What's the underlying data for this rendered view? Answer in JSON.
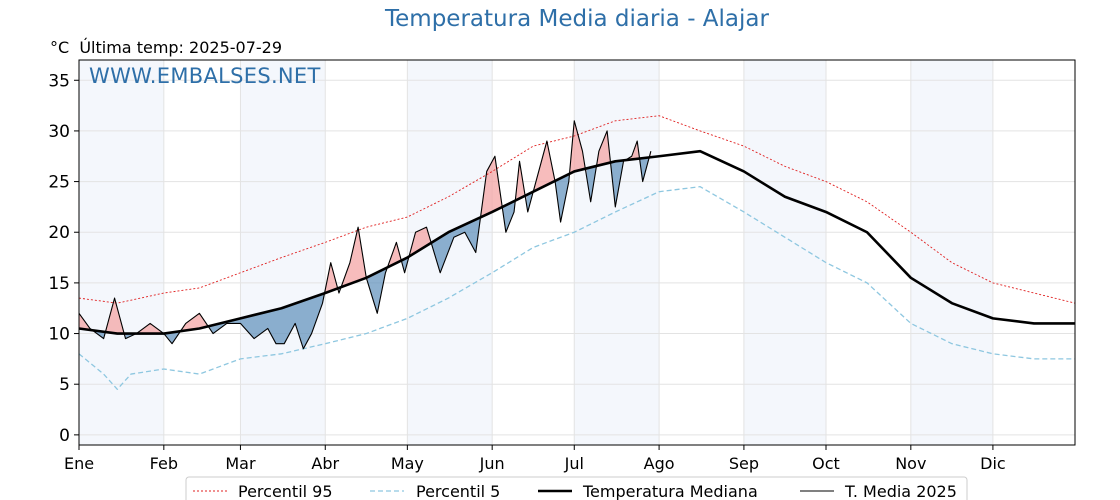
{
  "title": "Temperatura Media diaria - Alajar",
  "unit_label": "°C",
  "last_temp_label": "Última temp: 2025-07-29",
  "watermark": "WWW.EMBALSES.NET",
  "colors": {
    "title": "#2e6fa8",
    "p95": "#e02020",
    "p5": "#8ec7e0",
    "median": "#000000",
    "current": "#000000",
    "above_fill": "#f4a6a6",
    "below_fill": "#5d8fba",
    "month_band": "#dfe9f5"
  },
  "chart_data": {
    "type": "line",
    "ylabel": "°C",
    "ylim": [
      -1,
      37
    ],
    "yticks": [
      0,
      5,
      10,
      15,
      20,
      25,
      30,
      35
    ],
    "x_unit": "day of year",
    "xlim": [
      1,
      365
    ],
    "month_ticks": [
      {
        "label": "Ene",
        "day": 1
      },
      {
        "label": "Feb",
        "day": 32
      },
      {
        "label": "Mar",
        "day": 60
      },
      {
        "label": "Abr",
        "day": 91
      },
      {
        "label": "May",
        "day": 121
      },
      {
        "label": "Jun",
        "day": 152
      },
      {
        "label": "Jul",
        "day": 182
      },
      {
        "label": "Ago",
        "day": 213
      },
      {
        "label": "Sep",
        "day": 244
      },
      {
        "label": "Oct",
        "day": 274
      },
      {
        "label": "Nov",
        "day": 305
      },
      {
        "label": "Dic",
        "day": 335
      }
    ],
    "grid": true,
    "legend_position": "bottom",
    "series": [
      {
        "name": "Percentil 95",
        "key": "p95",
        "points": [
          [
            1,
            13.5
          ],
          [
            15,
            13
          ],
          [
            32,
            14
          ],
          [
            45,
            14.5
          ],
          [
            60,
            16
          ],
          [
            75,
            17.5
          ],
          [
            91,
            19
          ],
          [
            106,
            20.5
          ],
          [
            121,
            21.5
          ],
          [
            136,
            23.5
          ],
          [
            152,
            26
          ],
          [
            167,
            28.5
          ],
          [
            182,
            29.5
          ],
          [
            197,
            31
          ],
          [
            213,
            31.5
          ],
          [
            228,
            30
          ],
          [
            244,
            28.5
          ],
          [
            259,
            26.5
          ],
          [
            274,
            25
          ],
          [
            289,
            23
          ],
          [
            305,
            20
          ],
          [
            320,
            17
          ],
          [
            335,
            15
          ],
          [
            350,
            14
          ],
          [
            365,
            13
          ]
        ]
      },
      {
        "name": "Percentil 5",
        "key": "p5",
        "points": [
          [
            1,
            8
          ],
          [
            10,
            6
          ],
          [
            15,
            4.5
          ],
          [
            20,
            6
          ],
          [
            32,
            6.5
          ],
          [
            45,
            6
          ],
          [
            60,
            7.5
          ],
          [
            75,
            8
          ],
          [
            91,
            9
          ],
          [
            106,
            10
          ],
          [
            121,
            11.5
          ],
          [
            136,
            13.5
          ],
          [
            152,
            16
          ],
          [
            167,
            18.5
          ],
          [
            182,
            20
          ],
          [
            197,
            22
          ],
          [
            213,
            24
          ],
          [
            228,
            24.5
          ],
          [
            244,
            22
          ],
          [
            259,
            19.5
          ],
          [
            274,
            17
          ],
          [
            289,
            15
          ],
          [
            305,
            11
          ],
          [
            320,
            9
          ],
          [
            335,
            8
          ],
          [
            350,
            7.5
          ],
          [
            365,
            7.5
          ]
        ]
      },
      {
        "name": "Temperatura Mediana",
        "key": "median",
        "points": [
          [
            1,
            10.5
          ],
          [
            15,
            10
          ],
          [
            32,
            10
          ],
          [
            45,
            10.5
          ],
          [
            60,
            11.5
          ],
          [
            75,
            12.5
          ],
          [
            91,
            14
          ],
          [
            106,
            15.5
          ],
          [
            121,
            17.5
          ],
          [
            136,
            20
          ],
          [
            152,
            22
          ],
          [
            167,
            24
          ],
          [
            182,
            26
          ],
          [
            197,
            27
          ],
          [
            213,
            27.5
          ],
          [
            228,
            28
          ],
          [
            244,
            26
          ],
          [
            259,
            23.5
          ],
          [
            274,
            22
          ],
          [
            289,
            20
          ],
          [
            305,
            15.5
          ],
          [
            320,
            13
          ],
          [
            335,
            11.5
          ],
          [
            350,
            11
          ],
          [
            365,
            11
          ]
        ]
      },
      {
        "name": "T. Media 2025",
        "key": "current",
        "points": [
          [
            1,
            12
          ],
          [
            5,
            10.5
          ],
          [
            10,
            9.5
          ],
          [
            14,
            13.5
          ],
          [
            18,
            9.5
          ],
          [
            22,
            10
          ],
          [
            27,
            11
          ],
          [
            32,
            10
          ],
          [
            35,
            9
          ],
          [
            40,
            11
          ],
          [
            45,
            12
          ],
          [
            50,
            10
          ],
          [
            55,
            11
          ],
          [
            60,
            11
          ],
          [
            65,
            9.5
          ],
          [
            70,
            10.5
          ],
          [
            73,
            9
          ],
          [
            76,
            9
          ],
          [
            80,
            11
          ],
          [
            83,
            8.5
          ],
          [
            86,
            10
          ],
          [
            90,
            13
          ],
          [
            93,
            17
          ],
          [
            96,
            14
          ],
          [
            100,
            17
          ],
          [
            103,
            20.5
          ],
          [
            106,
            15.5
          ],
          [
            110,
            12
          ],
          [
            113,
            16
          ],
          [
            117,
            19
          ],
          [
            120,
            16
          ],
          [
            124,
            20
          ],
          [
            128,
            20.5
          ],
          [
            133,
            16
          ],
          [
            138,
            19.5
          ],
          [
            142,
            20
          ],
          [
            146,
            18
          ],
          [
            150,
            26
          ],
          [
            153,
            27.5
          ],
          [
            157,
            20
          ],
          [
            160,
            22
          ],
          [
            162,
            27
          ],
          [
            165,
            22
          ],
          [
            168,
            25
          ],
          [
            172,
            29
          ],
          [
            175,
            25
          ],
          [
            177,
            21
          ],
          [
            180,
            25
          ],
          [
            182,
            31
          ],
          [
            185,
            28
          ],
          [
            188,
            23
          ],
          [
            191,
            28
          ],
          [
            194,
            30
          ],
          [
            197,
            22.5
          ],
          [
            200,
            27
          ],
          [
            203,
            27.5
          ],
          [
            205,
            29
          ],
          [
            207,
            25
          ],
          [
            210,
            28
          ]
        ]
      }
    ]
  },
  "legend": {
    "p95": "Percentil 95",
    "p5": "Percentil 5",
    "median": "Temperatura Mediana",
    "current": "T. Media 2025"
  }
}
